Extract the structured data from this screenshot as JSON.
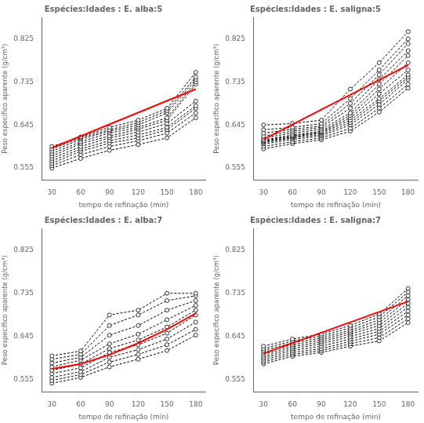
{
  "chart_data": [
    {
      "type": "line",
      "title": "Espécies:Idades : E. alba:5",
      "x_label": "tempo de refinação (min)",
      "y_label": "Peso específico aparente (g/cm³)",
      "x": [
        30,
        60,
        90,
        120,
        150,
        180
      ],
      "xlim": [
        20,
        190
      ],
      "xticks": [
        30,
        60,
        90,
        120,
        150,
        180
      ],
      "ylim": [
        0.53,
        0.87
      ],
      "yticks": [
        0.555,
        0.645,
        0.735,
        0.825
      ],
      "grid": false,
      "series": [
        {
          "color": "#000000",
          "line_style": "dashed",
          "marker": "circle",
          "values": [
            0.6,
            0.62,
            0.64,
            0.655,
            0.68,
            0.755
          ]
        },
        {
          "color": "#000000",
          "line_style": "dashed",
          "marker": "circle",
          "values": [
            0.595,
            0.618,
            0.635,
            0.65,
            0.675,
            0.745
          ]
        },
        {
          "color": "#000000",
          "line_style": "dashed",
          "marker": "circle",
          "values": [
            0.59,
            0.615,
            0.632,
            0.645,
            0.67,
            0.74
          ]
        },
        {
          "color": "#000000",
          "line_style": "dashed",
          "marker": "circle",
          "values": [
            0.585,
            0.61,
            0.628,
            0.64,
            0.66,
            0.735
          ]
        },
        {
          "color": "#000000",
          "line_style": "dashed",
          "marker": "circle",
          "values": [
            0.58,
            0.606,
            0.622,
            0.636,
            0.655,
            0.73
          ]
        },
        {
          "color": "#000000",
          "line_style": "dashed",
          "marker": "circle",
          "values": [
            0.575,
            0.6,
            0.618,
            0.63,
            0.648,
            0.695
          ]
        },
        {
          "color": "#000000",
          "line_style": "dashed",
          "marker": "circle",
          "values": [
            0.57,
            0.595,
            0.612,
            0.624,
            0.64,
            0.685
          ]
        },
        {
          "color": "#000000",
          "line_style": "dashed",
          "marker": "circle",
          "values": [
            0.565,
            0.59,
            0.607,
            0.618,
            0.635,
            0.68
          ]
        },
        {
          "color": "#000000",
          "line_style": "dashed",
          "marker": "circle",
          "values": [
            0.56,
            0.583,
            0.6,
            0.612,
            0.628,
            0.67
          ]
        },
        {
          "color": "#000000",
          "line_style": "dashed",
          "marker": "circle",
          "values": [
            0.555,
            0.575,
            0.592,
            0.604,
            0.618,
            0.66
          ]
        },
        {
          "color": "#FF0000",
          "line_style": "solid",
          "marker": "none",
          "values": [
            0.597,
            0.6216,
            0.6462,
            0.6708,
            0.6954,
            0.72
          ]
        }
      ]
    },
    {
      "type": "line",
      "title": "Espécies:Idades : E. saligna:5",
      "x_label": "tempo de refinação (min)",
      "y_label": "Peso específico aparente (g/cm³)",
      "x": [
        30,
        60,
        90,
        120,
        150,
        180
      ],
      "xlim": [
        20,
        190
      ],
      "xticks": [
        30,
        60,
        90,
        120,
        150,
        180
      ],
      "ylim": [
        0.53,
        0.87
      ],
      "yticks": [
        0.555,
        0.645,
        0.735,
        0.825
      ],
      "grid": false,
      "series": [
        {
          "color": "#000000",
          "line_style": "dashed",
          "marker": "circle",
          "values": [
            0.645,
            0.648,
            0.655,
            0.72,
            0.775,
            0.84
          ]
        },
        {
          "color": "#000000",
          "line_style": "dashed",
          "marker": "circle",
          "values": [
            0.635,
            0.64,
            0.648,
            0.7,
            0.76,
            0.825
          ]
        },
        {
          "color": "#000000",
          "line_style": "dashed",
          "marker": "circle",
          "values": [
            0.628,
            0.636,
            0.643,
            0.69,
            0.75,
            0.815
          ]
        },
        {
          "color": "#000000",
          "line_style": "dashed",
          "marker": "circle",
          "values": [
            0.622,
            0.632,
            0.64,
            0.68,
            0.74,
            0.8
          ]
        },
        {
          "color": "#000000",
          "line_style": "dashed",
          "marker": "circle",
          "values": [
            0.618,
            0.628,
            0.636,
            0.67,
            0.73,
            0.79
          ]
        },
        {
          "color": "#000000",
          "line_style": "dashed",
          "marker": "circle",
          "values": [
            0.614,
            0.624,
            0.632,
            0.665,
            0.72,
            0.775
          ]
        },
        {
          "color": "#000000",
          "line_style": "dashed",
          "marker": "circle",
          "values": [
            0.612,
            0.622,
            0.63,
            0.66,
            0.71,
            0.76
          ]
        },
        {
          "color": "#000000",
          "line_style": "dashed",
          "marker": "circle",
          "values": [
            0.61,
            0.62,
            0.628,
            0.655,
            0.7,
            0.75
          ]
        },
        {
          "color": "#000000",
          "line_style": "dashed",
          "marker": "circle",
          "values": [
            0.608,
            0.618,
            0.625,
            0.65,
            0.695,
            0.745
          ]
        },
        {
          "color": "#000000",
          "line_style": "dashed",
          "marker": "circle",
          "values": [
            0.605,
            0.615,
            0.622,
            0.645,
            0.688,
            0.74
          ]
        },
        {
          "color": "#000000",
          "line_style": "dashed",
          "marker": "circle",
          "values": [
            0.6,
            0.61,
            0.618,
            0.638,
            0.68,
            0.73
          ]
        },
        {
          "color": "#000000",
          "line_style": "dashed",
          "marker": "circle",
          "values": [
            0.595,
            0.606,
            0.614,
            0.632,
            0.672,
            0.722
          ]
        },
        {
          "color": "#FF0000",
          "line_style": "solid",
          "marker": "none",
          "values": [
            0.615,
            0.646,
            0.677,
            0.708,
            0.739,
            0.77
          ]
        }
      ]
    },
    {
      "type": "line",
      "title": "Espécies:Idades : E. alba:7",
      "x_label": "tempo de refinação (min)",
      "y_label": "Peso específico aparente (g/cm³)",
      "x": [
        30,
        60,
        90,
        120,
        150,
        180
      ],
      "xlim": [
        20,
        190
      ],
      "xticks": [
        30,
        60,
        90,
        120,
        150,
        180
      ],
      "ylim": [
        0.53,
        0.87
      ],
      "yticks": [
        0.555,
        0.645,
        0.735,
        0.825
      ],
      "grid": false,
      "series": [
        {
          "color": "#000000",
          "line_style": "dashed",
          "marker": "circle",
          "values": [
            0.605,
            0.615,
            0.69,
            0.7,
            0.735,
            0.735
          ]
        },
        {
          "color": "#000000",
          "line_style": "dashed",
          "marker": "circle",
          "values": [
            0.598,
            0.608,
            0.668,
            0.69,
            0.72,
            0.73
          ]
        },
        {
          "color": "#000000",
          "line_style": "dashed",
          "marker": "circle",
          "values": [
            0.59,
            0.602,
            0.648,
            0.668,
            0.7,
            0.72
          ]
        },
        {
          "color": "#000000",
          "line_style": "dashed",
          "marker": "circle",
          "values": [
            0.582,
            0.596,
            0.63,
            0.65,
            0.68,
            0.71
          ]
        },
        {
          "color": "#000000",
          "line_style": "dashed",
          "marker": "circle",
          "values": [
            0.575,
            0.588,
            0.62,
            0.638,
            0.665,
            0.7
          ]
        },
        {
          "color": "#000000",
          "line_style": "dashed",
          "marker": "circle",
          "values": [
            0.568,
            0.58,
            0.612,
            0.628,
            0.652,
            0.69
          ]
        },
        {
          "color": "#000000",
          "line_style": "dashed",
          "marker": "circle",
          "values": [
            0.56,
            0.572,
            0.602,
            0.618,
            0.64,
            0.675
          ]
        },
        {
          "color": "#000000",
          "line_style": "dashed",
          "marker": "circle",
          "values": [
            0.554,
            0.566,
            0.592,
            0.608,
            0.628,
            0.66
          ]
        },
        {
          "color": "#000000",
          "line_style": "dashed",
          "marker": "circle",
          "values": [
            0.548,
            0.56,
            0.582,
            0.598,
            0.616,
            0.648
          ]
        },
        {
          "color": "#FF0000",
          "line_style": "solid",
          "marker": "none",
          "values": [
            0.578,
            0.588286,
            0.607093,
            0.631447,
            0.660287,
            0.693
          ]
        }
      ]
    },
    {
      "type": "line",
      "title": "Espécies:Idades : E. saligna:7",
      "x_label": "tempo de refinação (min)",
      "y_label": "Peso específico aparente (g/cm³)",
      "x": [
        30,
        60,
        90,
        120,
        150,
        180
      ],
      "xlim": [
        20,
        190
      ],
      "xticks": [
        30,
        60,
        90,
        120,
        150,
        180
      ],
      "ylim": [
        0.53,
        0.87
      ],
      "yticks": [
        0.555,
        0.645,
        0.735,
        0.825
      ],
      "grid": false,
      "series": [
        {
          "color": "#000000",
          "line_style": "dashed",
          "marker": "circle",
          "values": [
            0.625,
            0.64,
            0.65,
            0.668,
            0.692,
            0.745
          ]
        },
        {
          "color": "#000000",
          "line_style": "dashed",
          "marker": "circle",
          "values": [
            0.62,
            0.636,
            0.646,
            0.663,
            0.686,
            0.738
          ]
        },
        {
          "color": "#000000",
          "line_style": "dashed",
          "marker": "circle",
          "values": [
            0.616,
            0.632,
            0.642,
            0.658,
            0.68,
            0.73
          ]
        },
        {
          "color": "#000000",
          "line_style": "dashed",
          "marker": "circle",
          "values": [
            0.612,
            0.628,
            0.638,
            0.654,
            0.674,
            0.722
          ]
        },
        {
          "color": "#000000",
          "line_style": "dashed",
          "marker": "circle",
          "values": [
            0.608,
            0.624,
            0.634,
            0.65,
            0.668,
            0.714
          ]
        },
        {
          "color": "#000000",
          "line_style": "dashed",
          "marker": "circle",
          "values": [
            0.604,
            0.62,
            0.63,
            0.645,
            0.662,
            0.706
          ]
        },
        {
          "color": "#000000",
          "line_style": "dashed",
          "marker": "circle",
          "values": [
            0.6,
            0.616,
            0.625,
            0.64,
            0.656,
            0.698
          ]
        },
        {
          "color": "#000000",
          "line_style": "dashed",
          "marker": "circle",
          "values": [
            0.596,
            0.612,
            0.62,
            0.635,
            0.65,
            0.69
          ]
        },
        {
          "color": "#000000",
          "line_style": "dashed",
          "marker": "circle",
          "values": [
            0.592,
            0.608,
            0.616,
            0.63,
            0.643,
            0.682
          ]
        },
        {
          "color": "#000000",
          "line_style": "dashed",
          "marker": "circle",
          "values": [
            0.588,
            0.604,
            0.612,
            0.625,
            0.636,
            0.674
          ]
        },
        {
          "color": "#FF0000",
          "line_style": "solid",
          "marker": "none",
          "values": [
            0.61,
            0.6316,
            0.6532,
            0.6748,
            0.6964,
            0.718
          ]
        }
      ]
    }
  ]
}
